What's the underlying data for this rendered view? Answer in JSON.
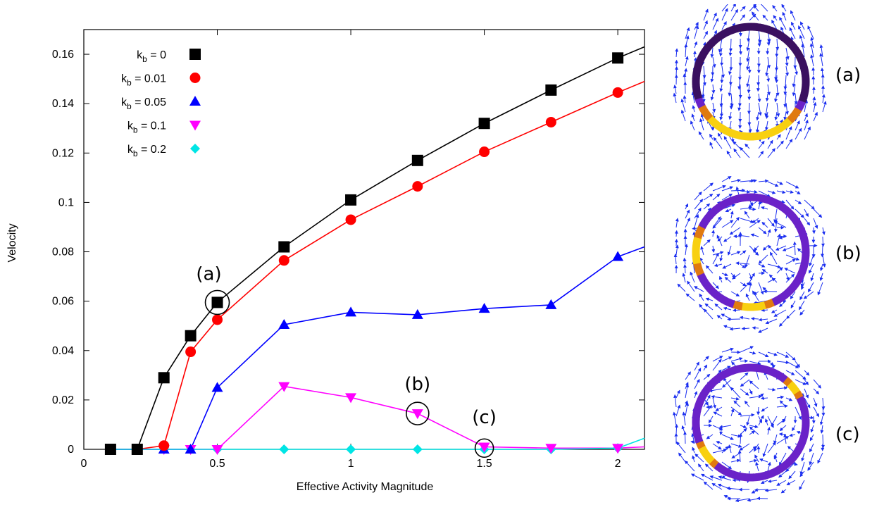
{
  "chart_data": {
    "type": "line",
    "xlabel": "Effective Activity Magnitude",
    "ylabel": "Velocity",
    "xlim": [
      0,
      2.1
    ],
    "ylim": [
      0,
      0.17
    ],
    "xticks": [
      0,
      0.5,
      1,
      1.5,
      2
    ],
    "yticks": [
      0,
      0.02,
      0.04,
      0.06,
      0.08,
      0.1,
      0.12,
      0.14,
      0.16
    ],
    "xtick_labels": [
      "0",
      "0.5",
      "1",
      "1.5",
      "2"
    ],
    "ytick_labels": [
      "0",
      "0.02",
      "0.04",
      "0.06",
      "0.08",
      "0.1",
      "0.12",
      "0.14",
      "0.16"
    ],
    "grid": false,
    "legend_position": "top-left",
    "series": [
      {
        "name": "k_b = 0",
        "legend_main": "k",
        "legend_sub": "b",
        "legend_rest": " = 0",
        "color": "#000000",
        "marker": "square",
        "x": [
          0.1,
          0.2,
          0.3,
          0.4,
          0.5,
          0.75,
          1.0,
          1.25,
          1.5,
          1.75,
          2.0
        ],
        "y": [
          0,
          0,
          0.029,
          0.046,
          0.0595,
          0.082,
          0.101,
          0.117,
          0.132,
          0.1455,
          0.1585
        ],
        "line_end": [
          2.1,
          0.163
        ]
      },
      {
        "name": "k_b = 0.01",
        "legend_main": "k",
        "legend_sub": "b",
        "legend_rest": " = 0.01",
        "color": "#ff0000",
        "marker": "circle",
        "x": [
          0.1,
          0.2,
          0.3,
          0.4,
          0.5,
          0.75,
          1.0,
          1.25,
          1.5,
          1.75,
          2.0
        ],
        "y": [
          0,
          0,
          0.0015,
          0.0395,
          0.0525,
          0.0765,
          0.093,
          0.1065,
          0.1205,
          0.1325,
          0.1445
        ],
        "line_end": [
          2.1,
          0.149
        ]
      },
      {
        "name": "k_b = 0.05",
        "legend_main": "k",
        "legend_sub": "b",
        "legend_rest": " = 0.05",
        "color": "#0000ff",
        "marker": "triangle-up",
        "x": [
          0.1,
          0.2,
          0.3,
          0.4,
          0.5,
          0.75,
          1.0,
          1.25,
          1.5,
          1.75,
          2.0
        ],
        "y": [
          0,
          0,
          0,
          0,
          0.025,
          0.0505,
          0.0555,
          0.0545,
          0.057,
          0.0585,
          0.078
        ],
        "line_end": [
          2.1,
          0.082
        ]
      },
      {
        "name": "k_b = 0.1",
        "legend_main": "k",
        "legend_sub": "b",
        "legend_rest": " = 0.1",
        "color": "#ff00ff",
        "marker": "triangle-down",
        "x": [
          0.1,
          0.2,
          0.3,
          0.4,
          0.5,
          0.75,
          1.0,
          1.25,
          1.5,
          1.75,
          2.0
        ],
        "y": [
          0,
          0,
          0,
          0,
          0,
          0.0255,
          0.021,
          0.0145,
          0.001,
          0.0005,
          0.0005
        ],
        "line_end": [
          2.1,
          0.001
        ]
      },
      {
        "name": "k_b = 0.2",
        "legend_main": "k",
        "legend_sub": "b",
        "legend_rest": " = 0.2",
        "color": "#00e5e5",
        "marker": "diamond",
        "x": [
          0.1,
          0.2,
          0.3,
          0.4,
          0.5,
          0.75,
          1.0,
          1.25,
          1.5,
          1.75,
          2.0
        ],
        "y": [
          0,
          0,
          0,
          0,
          0,
          0,
          0,
          0,
          0,
          0,
          0.0005
        ],
        "line_end": [
          2.1,
          0.0045
        ]
      }
    ],
    "annotations": [
      {
        "label": "(a)",
        "x": 0.5,
        "y": 0.0595
      },
      {
        "label": "(b)",
        "x": 1.25,
        "y": 0.0145
      },
      {
        "label": "(c)",
        "x": 1.5,
        "y": 0.0005
      }
    ]
  },
  "panels": [
    {
      "label": "(a)",
      "hot_arc": "bottom"
    },
    {
      "label": "(b)",
      "hot_arc": "left-and-bottom"
    },
    {
      "label": "(c)",
      "hot_arc": "topright-and-bottomleft"
    }
  ],
  "colors": {
    "ring_dark": "#3a1060",
    "ring_purple": "#6a22c8",
    "ring_orange": "#e07a10",
    "ring_yellow": "#f8d010",
    "arrow": "#1a2ef0"
  }
}
